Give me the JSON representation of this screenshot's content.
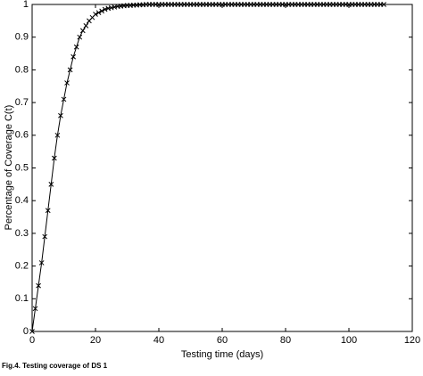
{
  "chart_data": {
    "type": "line",
    "x_label": "Testing time (days)",
    "y_label": "Percentage of Coverage C(t)",
    "caption": "Fig.4. Testing coverage of DS 1",
    "x": [
      0,
      1,
      2,
      3,
      4,
      5,
      6,
      7,
      8,
      9,
      10,
      11,
      12,
      13,
      14,
      15,
      16,
      17,
      18,
      19,
      20,
      21,
      22,
      23,
      24,
      25,
      26,
      27,
      28,
      29,
      30,
      31,
      32,
      33,
      34,
      35,
      36,
      37,
      38,
      39,
      40,
      41,
      42,
      43,
      44,
      45,
      46,
      47,
      48,
      49,
      50,
      51,
      52,
      53,
      54,
      55,
      56,
      57,
      58,
      59,
      60,
      61,
      62,
      63,
      64,
      65,
      66,
      67,
      68,
      69,
      70,
      71,
      72,
      73,
      74,
      75,
      76,
      77,
      78,
      79,
      80,
      81,
      82,
      83,
      84,
      85,
      86,
      87,
      88,
      89,
      90,
      91,
      92,
      93,
      94,
      95,
      96,
      97,
      98,
      99,
      100,
      101,
      102,
      103,
      104,
      105,
      106,
      107,
      108,
      109,
      110,
      111
    ],
    "series": [
      {
        "color": "#000000",
        "values": [
          0,
          0.07,
          0.14,
          0.21,
          0.29,
          0.37,
          0.45,
          0.53,
          0.6,
          0.66,
          0.71,
          0.76,
          0.8,
          0.84,
          0.87,
          0.9,
          0.92,
          0.935,
          0.95,
          0.96,
          0.97,
          0.975,
          0.98,
          0.985,
          0.988,
          0.99,
          0.992,
          0.994,
          0.995,
          0.996,
          0.997,
          0.997,
          0.998,
          0.998,
          0.999,
          0.999,
          1,
          1,
          1,
          1,
          1,
          1,
          1,
          1,
          1,
          1,
          1,
          1,
          1,
          1,
          1,
          1,
          1,
          1,
          1,
          1,
          1,
          1,
          1,
          1,
          1,
          1,
          1,
          1,
          1,
          1,
          1,
          1,
          1,
          1,
          1,
          1,
          1,
          1,
          1,
          1,
          1,
          1,
          1,
          1,
          1,
          1,
          1,
          1,
          1,
          1,
          1,
          1,
          1,
          1,
          1,
          1,
          1,
          1,
          1,
          1,
          1,
          1,
          1,
          1,
          1,
          1,
          1,
          1,
          1,
          1,
          1,
          1,
          1,
          1,
          1,
          1
        ]
      }
    ],
    "xlim": [
      0,
      120
    ],
    "xticks": [
      0,
      20,
      40,
      60,
      80,
      100,
      120
    ],
    "ylim": [
      0,
      1
    ],
    "yticks": [
      0,
      0.1,
      0.2,
      0.3,
      0.4,
      0.5,
      0.6,
      0.7,
      0.8,
      0.9,
      1
    ]
  }
}
